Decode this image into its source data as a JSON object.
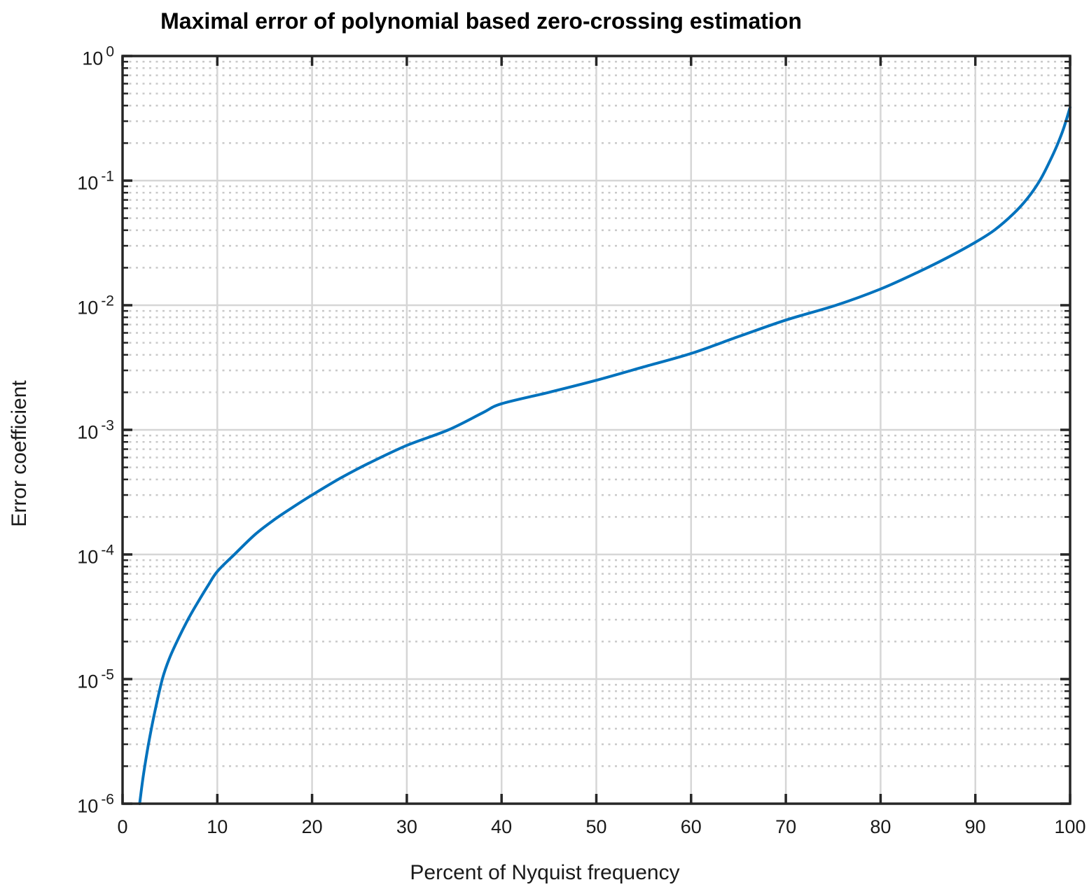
{
  "title": "Maximal error of polynomial based zero-crossing estimation",
  "colors": {
    "curve": "#0072bd",
    "major_grid": "#d6d6d6",
    "minor_grid": "#c9c9c9",
    "axis": "#262626",
    "text": "#1a1a1a",
    "title_text": "#000000",
    "background": "#ffffff"
  },
  "chart_data": {
    "type": "line",
    "title": "Maximal error of polynomial based zero-crossing estimation",
    "xlabel": "Percent of Nyquist frequency",
    "ylabel": "Error coefficient",
    "xlim": [
      0,
      100
    ],
    "ylim": [
      1e-06,
      1
    ],
    "y_scale": "log10",
    "x_ticks": [
      0,
      10,
      20,
      30,
      40,
      50,
      60,
      70,
      80,
      90,
      100
    ],
    "y_tick_exponents": [
      0,
      -1,
      -2,
      -3,
      -4,
      -5,
      -6
    ],
    "grid": {
      "x_major": "solid",
      "y_major": "solid",
      "y_minor": "dotted",
      "x_minor": "none",
      "legend": "none",
      "box": true
    },
    "series": [
      {
        "name": "maximal-error-curve",
        "color": "#0072bd",
        "points": [
          [
            1.8,
            1e-06
          ],
          [
            2.2,
            1.7e-06
          ],
          [
            2.7,
            2.9e-06
          ],
          [
            3.3,
            5e-06
          ],
          [
            4.2,
            1e-05
          ],
          [
            5.0,
            1.5e-05
          ],
          [
            6.0,
            2.2e-05
          ],
          [
            7.0,
            3.1e-05
          ],
          [
            8.0,
            4.2e-05
          ],
          [
            9.0,
            5.6e-05
          ],
          [
            10.0,
            7.3e-05
          ],
          [
            11.8,
            0.0001
          ],
          [
            14.0,
            0.000145
          ],
          [
            16.0,
            0.00019
          ],
          [
            18.0,
            0.00024
          ],
          [
            20.0,
            0.0003
          ],
          [
            23.0,
            0.00041
          ],
          [
            26.0,
            0.00054
          ],
          [
            30.0,
            0.00075
          ],
          [
            34.4,
            0.001
          ],
          [
            38.0,
            0.00137
          ],
          [
            40.0,
            0.00162
          ],
          [
            45.0,
            0.002
          ],
          [
            50.0,
            0.0025
          ],
          [
            55.0,
            0.0032
          ],
          [
            60.0,
            0.0041
          ],
          [
            65.0,
            0.0056
          ],
          [
            70.0,
            0.0076
          ],
          [
            75.3,
            0.01
          ],
          [
            80.0,
            0.0135
          ],
          [
            84.0,
            0.0185
          ],
          [
            87.0,
            0.024
          ],
          [
            90.0,
            0.032
          ],
          [
            92.0,
            0.04
          ],
          [
            94.0,
            0.054
          ],
          [
            95.5,
            0.072
          ],
          [
            96.8,
            0.1
          ],
          [
            97.8,
            0.14
          ],
          [
            98.6,
            0.19
          ],
          [
            99.3,
            0.26
          ],
          [
            100.0,
            0.387
          ]
        ]
      }
    ]
  }
}
